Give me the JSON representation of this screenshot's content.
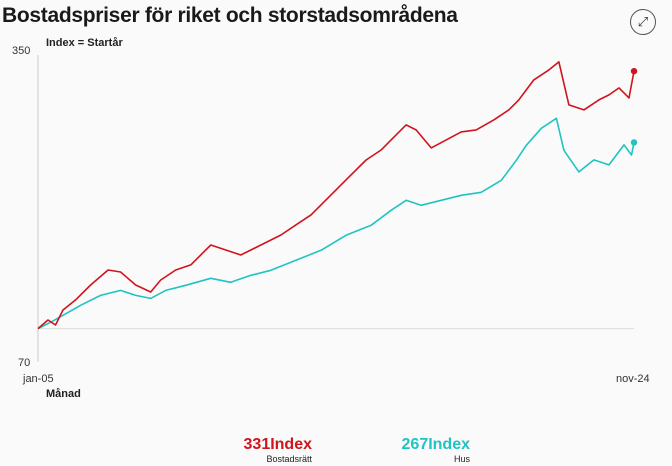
{
  "title": "Bostadspriser för riket och storstadsområdena",
  "icons": {
    "expand": "expand-arrows-icon"
  },
  "chart_data": {
    "type": "line",
    "ylabel": "Index = Startår",
    "xlabel": "Månad",
    "ylim": [
      70,
      350
    ],
    "yticks": [
      "350",
      "70"
    ],
    "xticks": [
      "jan-05",
      "nov-24"
    ],
    "x_unit": "months since jan-05",
    "baseline": 100,
    "series": [
      {
        "name": "Bostadsrätt",
        "color": "#d0141c",
        "last_label": "331Index",
        "points": [
          [
            0,
            100
          ],
          [
            4,
            107.7
          ],
          [
            7,
            103.2
          ],
          [
            10,
            116.7
          ],
          [
            15,
            125.7
          ],
          [
            21,
            139.1
          ],
          [
            28,
            152.6
          ],
          [
            33,
            150.8
          ],
          [
            39,
            139.1
          ],
          [
            45,
            132.8
          ],
          [
            49,
            143.6
          ],
          [
            55,
            152.6
          ],
          [
            61,
            157.1
          ],
          [
            69,
            175
          ],
          [
            75,
            170.5
          ],
          [
            81,
            166
          ],
          [
            89,
            175
          ],
          [
            97,
            184
          ],
          [
            103,
            193
          ],
          [
            109,
            202
          ],
          [
            117,
            220
          ],
          [
            125,
            237.9
          ],
          [
            131,
            251.3
          ],
          [
            137,
            260.3
          ],
          [
            141,
            269.3
          ],
          [
            147,
            282.8
          ],
          [
            151,
            278.3
          ],
          [
            157,
            262.1
          ],
          [
            163,
            269.3
          ],
          [
            169,
            276.5
          ],
          [
            175,
            278.3
          ],
          [
            182,
            287.3
          ],
          [
            188,
            296.2
          ],
          [
            192,
            305.2
          ],
          [
            198,
            323.2
          ],
          [
            204,
            332.1
          ],
          [
            208,
            339.3
          ],
          [
            212,
            300.7
          ],
          [
            218,
            296.2
          ],
          [
            224,
            305.2
          ],
          [
            228,
            309.7
          ],
          [
            232,
            316
          ],
          [
            236,
            307
          ],
          [
            238,
            331
          ]
        ]
      },
      {
        "name": "Hus",
        "color": "#1fc4c0",
        "last_label": "267Index",
        "points": [
          [
            0,
            100
          ],
          [
            5,
            105.6
          ],
          [
            10,
            111.9
          ],
          [
            17,
            120.9
          ],
          [
            25,
            129.8
          ],
          [
            33,
            134.3
          ],
          [
            39,
            129.8
          ],
          [
            45,
            127.1
          ],
          [
            51,
            134.3
          ],
          [
            59,
            138.8
          ],
          [
            69,
            145.1
          ],
          [
            77,
            141.5
          ],
          [
            85,
            147.8
          ],
          [
            93,
            152.3
          ],
          [
            105,
            163.1
          ],
          [
            113,
            170.2
          ],
          [
            123,
            183.7
          ],
          [
            133,
            192.7
          ],
          [
            141,
            206.1
          ],
          [
            147,
            215.1
          ],
          [
            153,
            210.6
          ],
          [
            161,
            215.1
          ],
          [
            169,
            219.6
          ],
          [
            177,
            222.3
          ],
          [
            185,
            233.1
          ],
          [
            191,
            251
          ],
          [
            195,
            264.5
          ],
          [
            201,
            279.7
          ],
          [
            207,
            288.7
          ],
          [
            210,
            260
          ],
          [
            216,
            240.6
          ],
          [
            222,
            251.4
          ],
          [
            228,
            246.9
          ],
          [
            234,
            264.8
          ],
          [
            237,
            255.8
          ],
          [
            238,
            267
          ]
        ]
      }
    ]
  }
}
